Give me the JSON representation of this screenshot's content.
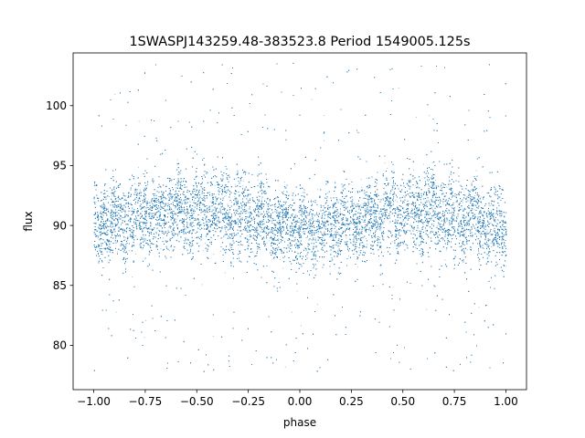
{
  "chart_data": {
    "type": "scatter",
    "title": "1SWASPJ143259.48-383523.8 Period 1549005.125s",
    "xlabel": "phase",
    "ylabel": "flux",
    "xlim": [
      -1.1,
      1.1
    ],
    "ylim": [
      76.3,
      104.4
    ],
    "xticks": [
      -1.0,
      -0.75,
      -0.5,
      -0.25,
      0.0,
      0.25,
      0.5,
      0.75,
      1.0
    ],
    "xtick_labels": [
      "−1.00",
      "−0.75",
      "−0.50",
      "−0.25",
      "0.00",
      "0.25",
      "0.50",
      "0.75",
      "1.00"
    ],
    "yticks": [
      80,
      85,
      90,
      95,
      100
    ],
    "ytick_labels": [
      "80",
      "85",
      "90",
      "95",
      "100"
    ],
    "grid": false,
    "series_color": "#1f77b4",
    "band_profile": {
      "phase": [
        -1.0,
        -0.9,
        -0.8,
        -0.7,
        -0.6,
        -0.5,
        -0.4,
        -0.3,
        -0.2,
        -0.1,
        0.0,
        0.1,
        0.2,
        0.3,
        0.4,
        0.5,
        0.6,
        0.7,
        0.8,
        0.9,
        1.0
      ],
      "median": [
        89.8,
        90.2,
        90.7,
        91.0,
        91.2,
        91.4,
        91.3,
        91.0,
        90.6,
        90.0,
        89.6,
        89.9,
        90.3,
        90.6,
        90.9,
        91.2,
        91.3,
        91.1,
        90.7,
        90.2,
        89.8
      ],
      "lower": [
        86.5,
        87.0,
        87.5,
        88.0,
        88.2,
        88.3,
        88.0,
        87.8,
        87.5,
        87.0,
        86.5,
        86.8,
        87.0,
        87.4,
        87.8,
        88.0,
        88.0,
        87.8,
        87.2,
        86.8,
        86.5
      ],
      "upper": [
        93.0,
        93.5,
        94.0,
        94.5,
        95.0,
        95.2,
        95.0,
        94.5,
        94.0,
        93.0,
        92.5,
        93.0,
        93.5,
        94.0,
        94.5,
        95.0,
        95.2,
        94.8,
        94.2,
        93.8,
        93.0
      ]
    },
    "outlier_range": [
      77.8,
      103.6
    ],
    "approx_point_count": 30000
  }
}
